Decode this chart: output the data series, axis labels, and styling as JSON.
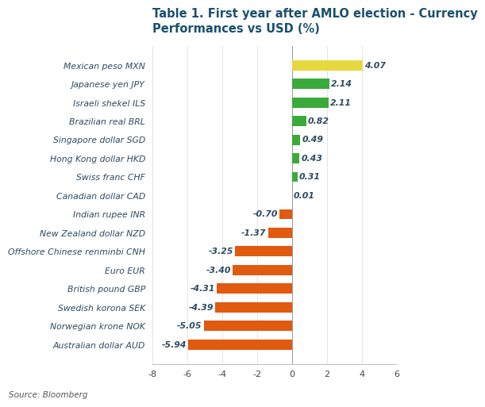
{
  "title_line1": "Table 1. First year after AMLO election - Currency",
  "title_line2": "Performances vs USD (%)",
  "source": "Source: Bloomberg",
  "categories": [
    "Mexican peso MXN",
    "Japanese yen JPY",
    "Israeli shekel ILS",
    "Brazilian real BRL",
    "Singapore dollar SGD",
    "Hong Kong dollar HKD",
    "Swiss franc CHF",
    "Canadian dollar CAD",
    "Indian rupee INR",
    "New Zealand dollar NZD",
    "Offshore Chinese renminbi CNH",
    "Euro EUR",
    "British pound GBP",
    "Swedish korona SEK",
    "Norwegian krone NOK",
    "Australian dollar AUD"
  ],
  "values": [
    4.07,
    2.14,
    2.11,
    0.82,
    0.49,
    0.43,
    0.31,
    0.01,
    -0.7,
    -1.37,
    -3.25,
    -3.4,
    -4.31,
    -4.39,
    -5.05,
    -5.94
  ],
  "colors": [
    "#e8d840",
    "#3aaa3a",
    "#3aaa3a",
    "#3aaa3a",
    "#3aaa3a",
    "#3aaa3a",
    "#3aaa3a",
    "#3aaa3a",
    "#e05a10",
    "#e05a10",
    "#e05a10",
    "#e05a10",
    "#e05a10",
    "#e05a10",
    "#e05a10",
    "#e05a10"
  ],
  "xlim": [
    -8,
    6
  ],
  "xticks": [
    -8,
    -6,
    -4,
    -2,
    0,
    2,
    4,
    6
  ],
  "background_color": "#ffffff",
  "title_color": "#1a4f6e",
  "label_color": "#2e4a60",
  "value_color": "#2e4a60",
  "bar_height": 0.55,
  "label_fontsize": 7.8,
  "value_fontsize": 7.8,
  "title_fontsize": 10.5
}
